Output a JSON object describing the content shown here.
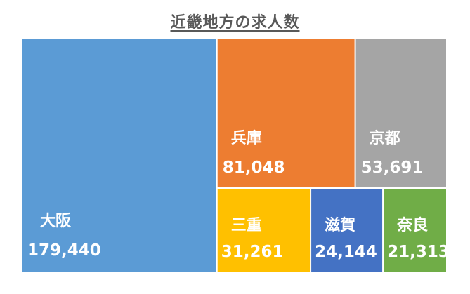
{
  "chart_data": {
    "type": "treemap",
    "title": "近畿地方の求人数",
    "items": [
      {
        "name": "大阪",
        "value": 179440,
        "value_label": "179,440",
        "color": "#5B9BD5"
      },
      {
        "name": "兵庫",
        "value": 81048,
        "value_label": "81,048",
        "color": "#ED7D31"
      },
      {
        "name": "京都",
        "value": 53691,
        "value_label": "53,691",
        "color": "#A5A5A5"
      },
      {
        "name": "三重",
        "value": 31261,
        "value_label": "31,261",
        "color": "#FFC000"
      },
      {
        "name": "滋賀",
        "value": 24144,
        "value_label": "24,144",
        "color": "#4472C4"
      },
      {
        "name": "奈良",
        "value": 21313,
        "value_label": "21,313",
        "color": "#70AD47"
      }
    ]
  }
}
